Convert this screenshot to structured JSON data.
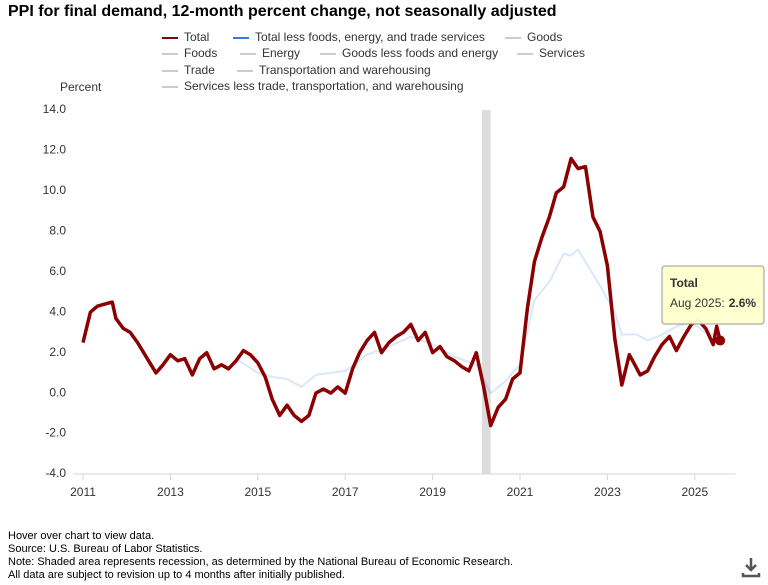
{
  "chart_data": {
    "type": "line",
    "title": "PPI for final demand, 12-month percent change, not seasonally adjusted",
    "y_label": "Percent",
    "xlim": [
      2011,
      2025.7
    ],
    "xticks": [
      2011,
      2013,
      2015,
      2017,
      2019,
      2021,
      2023,
      2025
    ],
    "ylim": [
      -4,
      14
    ],
    "yticks": [
      {
        "value": -4,
        "label": "-4.0"
      },
      {
        "value": -2,
        "label": "-2.0"
      },
      {
        "value": 0,
        "label": "0.0"
      },
      {
        "value": 2,
        "label": "2.0"
      },
      {
        "value": 4,
        "label": "4.0"
      },
      {
        "value": 6,
        "label": "6.0"
      },
      {
        "value": 8,
        "label": "8.0"
      },
      {
        "value": 10,
        "label": "10.0"
      },
      {
        "value": 12,
        "label": "12.0"
      },
      {
        "value": 14,
        "label": "14.0"
      }
    ],
    "grid": false,
    "recessions": [
      [
        2020.13,
        2020.33
      ]
    ],
    "series": [
      {
        "name": "Total",
        "color": "#8b0000",
        "x": [
          2011.0,
          2011.17,
          2011.33,
          2011.5,
          2011.67,
          2011.75,
          2011.92,
          2012.08,
          2012.25,
          2012.5,
          2012.67,
          2012.83,
          2013.0,
          2013.17,
          2013.33,
          2013.5,
          2013.67,
          2013.83,
          2014.0,
          2014.17,
          2014.33,
          2014.5,
          2014.67,
          2014.83,
          2015.0,
          2015.17,
          2015.33,
          2015.5,
          2015.67,
          2015.83,
          2016.0,
          2016.17,
          2016.33,
          2016.5,
          2016.67,
          2016.83,
          2017.0,
          2017.17,
          2017.33,
          2017.5,
          2017.67,
          2017.83,
          2018.0,
          2018.17,
          2018.33,
          2018.5,
          2018.67,
          2018.83,
          2019.0,
          2019.17,
          2019.33,
          2019.5,
          2019.67,
          2019.83,
          2020.0,
          2020.17,
          2020.33,
          2020.5,
          2020.67,
          2020.83,
          2021.0,
          2021.17,
          2021.33,
          2021.5,
          2021.67,
          2021.83,
          2022.0,
          2022.17,
          2022.33,
          2022.5,
          2022.67,
          2022.83,
          2023.0,
          2023.17,
          2023.33,
          2023.5,
          2023.58,
          2023.75,
          2023.92,
          2024.08,
          2024.25,
          2024.42,
          2024.58,
          2024.75,
          2024.92,
          2025.08,
          2025.25,
          2025.42,
          2025.5,
          2025.58
        ],
        "values": [
          2.5,
          4.0,
          4.3,
          4.4,
          4.5,
          3.7,
          3.2,
          3.0,
          2.5,
          1.6,
          1.0,
          1.4,
          1.9,
          1.6,
          1.7,
          0.9,
          1.7,
          2.0,
          1.2,
          1.4,
          1.2,
          1.6,
          2.1,
          1.9,
          1.5,
          0.8,
          -0.3,
          -1.1,
          -0.6,
          -1.1,
          -1.4,
          -1.1,
          0.0,
          0.2,
          0.0,
          0.3,
          0.0,
          1.2,
          2.0,
          2.6,
          3.0,
          2.0,
          2.5,
          2.8,
          3.0,
          3.4,
          2.6,
          3.0,
          2.0,
          2.3,
          1.8,
          1.6,
          1.3,
          1.1,
          2.0,
          0.3,
          -1.6,
          -0.7,
          -0.3,
          0.7,
          1.0,
          4.2,
          6.5,
          7.7,
          8.7,
          9.9,
          10.2,
          11.6,
          11.1,
          11.2,
          8.7,
          8.0,
          6.3,
          2.7,
          0.4,
          1.9,
          1.6,
          0.9,
          1.1,
          1.8,
          2.4,
          2.8,
          2.1,
          2.8,
          3.4,
          3.6,
          3.2,
          2.4,
          3.3,
          2.6
        ]
      },
      {
        "name": "Total less foods, energy, and trade services",
        "color": "#2f7ed8",
        "faded": true,
        "x": [
          2014.5,
          2015.0,
          2015.33,
          2015.67,
          2016.0,
          2016.33,
          2016.67,
          2017.0,
          2017.5,
          2018.0,
          2018.5,
          2019.0,
          2019.5,
          2020.0,
          2020.33,
          2020.67,
          2021.0,
          2021.33,
          2021.67,
          2022.0,
          2022.17,
          2022.33,
          2022.5,
          2022.83,
          2023.17,
          2023.33,
          2023.67,
          2023.92,
          2024.25,
          2024.58,
          2024.92,
          2025.25,
          2025.58
        ],
        "values": [
          1.7,
          1.0,
          0.8,
          0.7,
          0.3,
          0.9,
          1.0,
          1.1,
          1.9,
          2.3,
          2.8,
          2.4,
          1.8,
          1.4,
          0.0,
          0.6,
          1.4,
          4.6,
          5.5,
          6.9,
          6.8,
          7.1,
          6.5,
          5.3,
          4.0,
          2.9,
          2.9,
          2.6,
          2.9,
          3.3,
          3.5,
          3.0,
          2.8
        ]
      },
      {
        "name": "Goods",
        "color": "#999999",
        "visible": false
      },
      {
        "name": "Foods",
        "color": "#999999",
        "visible": false
      },
      {
        "name": "Energy",
        "color": "#999999",
        "visible": false
      },
      {
        "name": "Goods less foods and energy",
        "color": "#999999",
        "visible": false
      },
      {
        "name": "Services",
        "color": "#999999",
        "visible": false
      },
      {
        "name": "Trade",
        "color": "#999999",
        "visible": false
      },
      {
        "name": "Transportation and warehousing",
        "color": "#999999",
        "visible": false
      },
      {
        "name": "Services less trade, transportation, and warehousing",
        "color": "#999999",
        "visible": false
      }
    ],
    "tooltip": {
      "series": "Total",
      "date": "Aug 2025:",
      "value": "2.6%"
    },
    "notes": [
      "Hover over chart to view data.",
      "Source: U.S. Bureau of Labor Statistics.",
      "Note: Shaded area represents recession, as determined by the National Bureau of Economic Research.",
      "All data are subject to revision up to 4 months after initially published."
    ]
  }
}
